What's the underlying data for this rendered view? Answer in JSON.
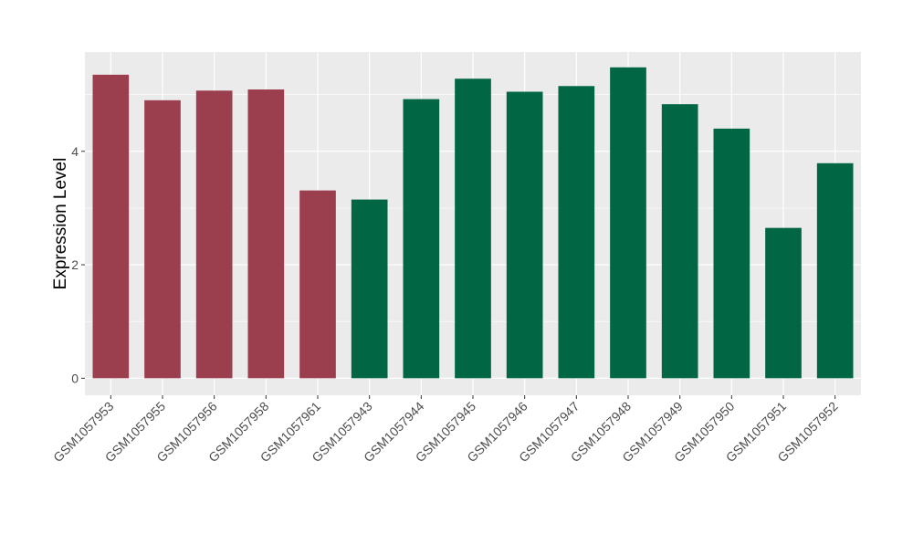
{
  "chart_data": {
    "type": "bar",
    "title": "",
    "xlabel": "",
    "ylabel": "Expression Level",
    "ylim": [
      -0.3,
      5.75
    ],
    "yticks": [
      0,
      2,
      4
    ],
    "grid": true,
    "legend": "none",
    "categories": [
      "GSM1057953",
      "GSM1057955",
      "GSM1057956",
      "GSM1057958",
      "GSM1057961",
      "GSM1057943",
      "GSM1057944",
      "GSM1057945",
      "GSM1057946",
      "GSM1057947",
      "GSM1057948",
      "GSM1057949",
      "GSM1057950",
      "GSM1057951",
      "GSM1057952"
    ],
    "values": [
      5.35,
      4.9,
      5.07,
      5.09,
      3.31,
      3.15,
      4.92,
      5.28,
      5.05,
      5.15,
      5.48,
      4.83,
      4.4,
      2.65,
      3.79
    ],
    "groups": [
      "a",
      "a",
      "a",
      "a",
      "a",
      "b",
      "b",
      "b",
      "b",
      "b",
      "b",
      "b",
      "b",
      "b",
      "b"
    ],
    "colors": {
      "a": "#9b3f4f",
      "b": "#006644",
      "panel_bg": "#ebebeb",
      "grid": "#ffffff",
      "axis_text": "#4d4d4d"
    }
  }
}
